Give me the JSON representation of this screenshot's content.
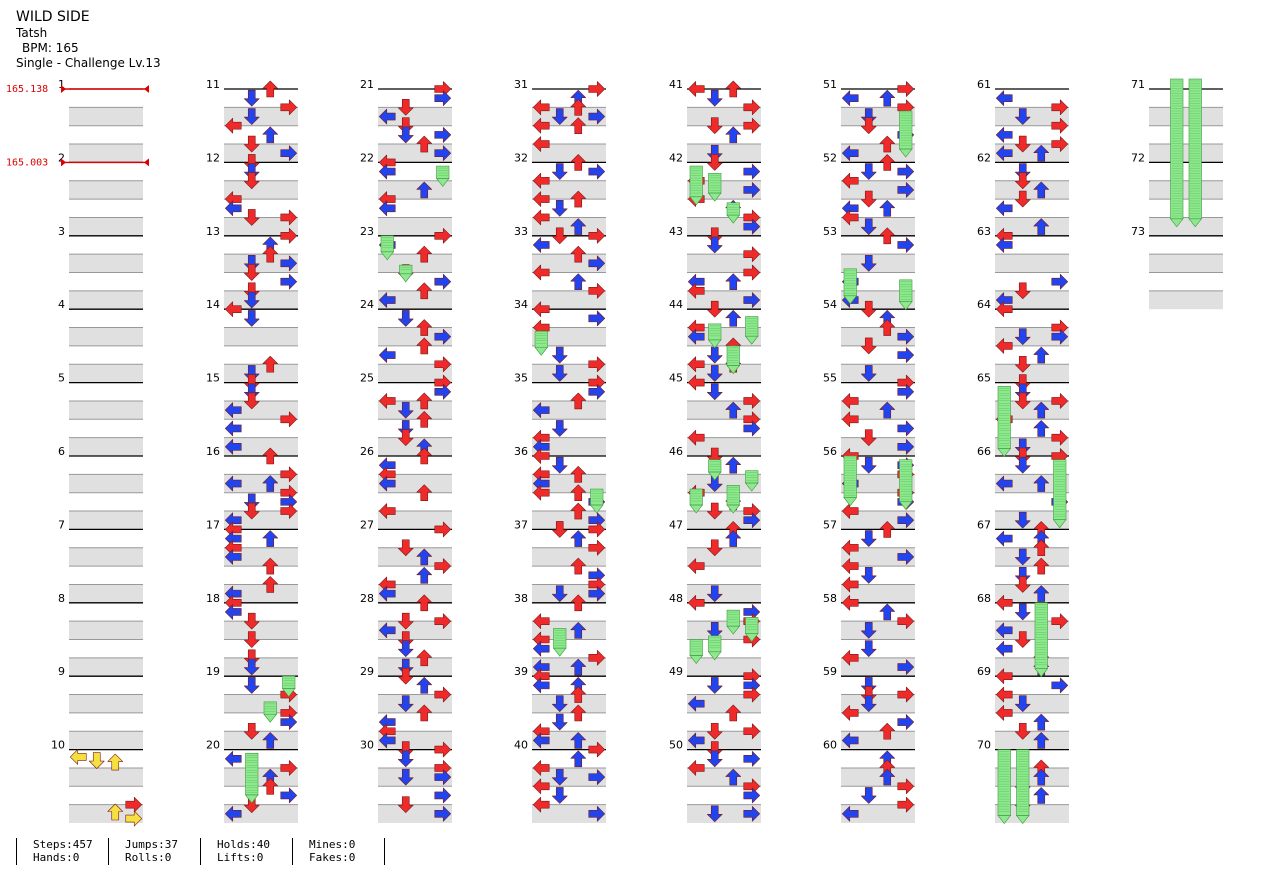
{
  "song": {
    "title": "WILD SIDE",
    "artist": "Tatsh",
    "bpm_line": "BPM: 165",
    "difficulty_line": "Single - Challenge  Lv.13"
  },
  "bpm_changes": [
    {
      "measure": 1,
      "label": "165.138"
    },
    {
      "measure": 2,
      "label": "165.003"
    }
  ],
  "measure_count": 73,
  "colors": {
    "red_note": "#ee2a2a",
    "blue_note": "#2244ee",
    "yellow_note": "#f4e040",
    "hold": "#8fe88f",
    "stripe": "#e0e0e0",
    "bpm_marker": "#dd0000"
  },
  "stats": [
    {
      "top": "Steps:457",
      "bottom": "Hands:0"
    },
    {
      "top": "Jumps:37",
      "bottom": "Rolls:0"
    },
    {
      "top": "Holds:40",
      "bottom": "Lifts:0"
    },
    {
      "top": "Mines:0",
      "bottom": "Fakes:0"
    }
  ]
}
